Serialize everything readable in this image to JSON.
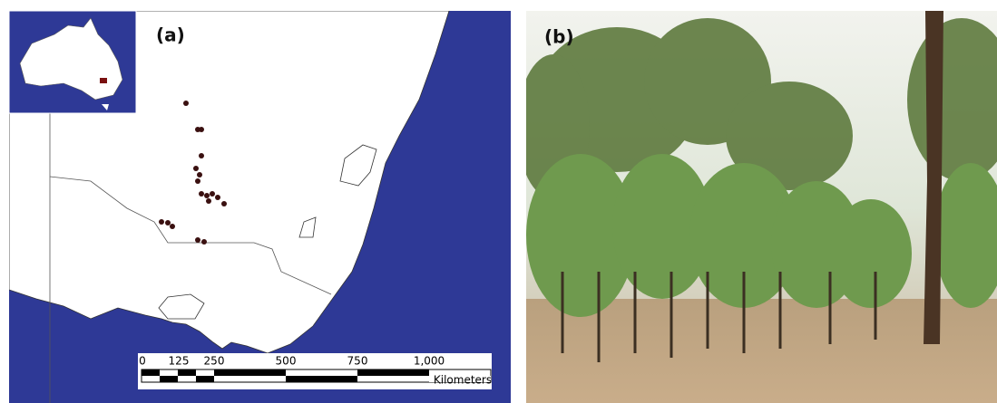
{
  "panels": [
    {
      "label": "(a)",
      "scale_bar": {
        "ticks": [
          "0",
          "125",
          "250",
          "500",
          "750",
          "1,000"
        ],
        "unit": "Kilometers"
      }
    },
    {
      "label": "(b)"
    }
  ]
}
